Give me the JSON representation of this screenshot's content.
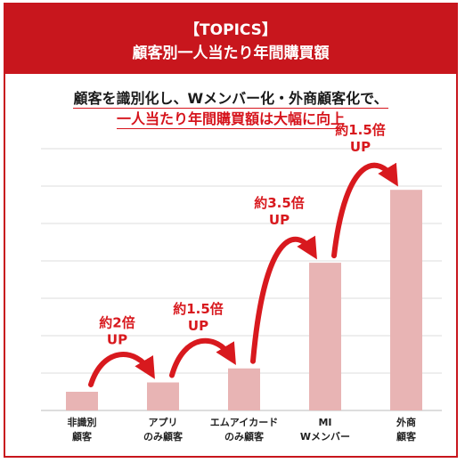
{
  "header": {
    "tag": "【TOPICS】",
    "title": "顧客別一人当たり年間購買額"
  },
  "subtitle": {
    "line1": "顧客を識別化し、Wメンバー化・外商顧客化で、",
    "line2": "一人当たり年間購買額は大幅に向上"
  },
  "colors": {
    "accent": "#c8161d",
    "bar": "#e8b4b4",
    "arrow": "#d8191e",
    "grid": "#dddddd"
  },
  "chart_data": {
    "type": "bar",
    "title": "",
    "xlabel": "",
    "ylabel": "",
    "categories": [
      [
        "非識別",
        "顧客"
      ],
      [
        "アプリ",
        "のみ顧客"
      ],
      [
        "エムアイカード",
        "のみ顧客"
      ],
      [
        "MI",
        "Wメンバー"
      ],
      [
        "外商",
        "顧客"
      ]
    ],
    "values": [
      1,
      1.5,
      2.25,
      7.9,
      11.8
    ],
    "ylim": [
      0,
      14
    ],
    "grid": true,
    "annotations": [
      {
        "from": 0,
        "to": 1,
        "line1": "約2倍",
        "line2": "UP"
      },
      {
        "from": 1,
        "to": 2,
        "line1": "約1.5倍",
        "line2": "UP"
      },
      {
        "from": 2,
        "to": 3,
        "line1": "約3.5倍",
        "line2": "UP"
      },
      {
        "from": 3,
        "to": 4,
        "line1": "約1.5倍",
        "line2": "UP"
      }
    ]
  }
}
